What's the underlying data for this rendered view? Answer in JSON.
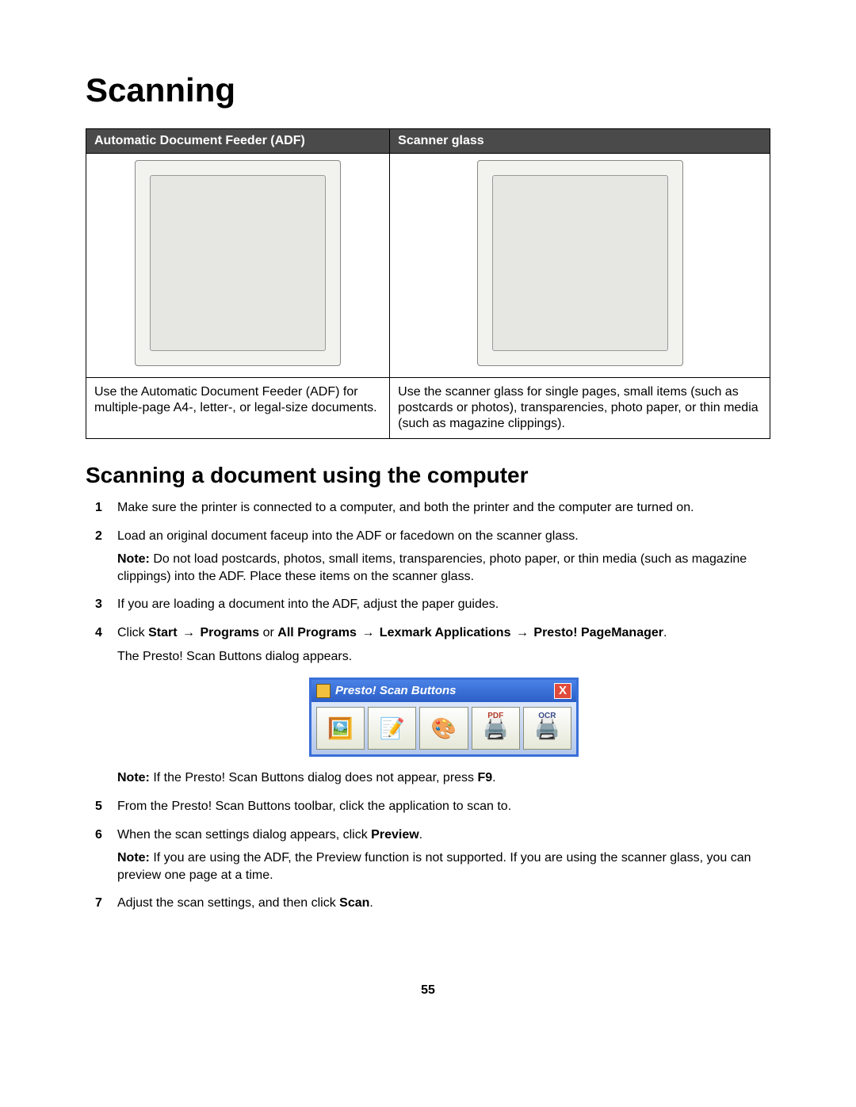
{
  "title": "Scanning",
  "table": {
    "headers": [
      "Automatic Document Feeder (ADF)",
      "Scanner glass"
    ],
    "captions": [
      "Use the Automatic Document Feeder (ADF) for multiple-page A4-, letter-, or legal-size documents.",
      "Use the scanner glass for single pages, small items (such as postcards or photos), transparencies, photo paper, or thin media (such as magazine clippings)."
    ]
  },
  "section_title": "Scanning a document using the computer",
  "steps": {
    "s1": "Make sure the printer is connected to a computer, and both the printer and the computer are turned on.",
    "s2": "Load an original document faceup into the ADF or facedown on the scanner glass.",
    "s2_note_label": "Note:",
    "s2_note": " Do not load postcards, photos, small items, transparencies, photo paper, or thin media (such as magazine clippings) into the ADF. Place these items on the scanner glass.",
    "s3": "If you are loading a document into the ADF, adjust the paper guides.",
    "s4_prefix": "Click ",
    "s4_start": "Start",
    "s4_programs": "Programs",
    "s4_or": " or ",
    "s4_allprograms": "All Programs",
    "s4_lexmark": "Lexmark Applications",
    "s4_presto": "Presto! PageManager",
    "s4_period": ".",
    "s4_sub": "The Presto! Scan Buttons dialog appears.",
    "s4_note_label": "Note:",
    "s4_note_a": " If the Presto! Scan Buttons dialog does not appear, press ",
    "s4_note_key": "F9",
    "s4_note_b": ".",
    "s5": "From the Presto! Scan Buttons toolbar, click the application to scan to.",
    "s6_a": "When the scan settings dialog appears, click ",
    "s6_b": "Preview",
    "s6_c": ".",
    "s6_note_label": "Note:",
    "s6_note": " If you are using the ADF, the Preview function is not supported. If you are using the scanner glass, you can preview one page at a time.",
    "s7_a": "Adjust the scan settings, and then click ",
    "s7_b": "Scan",
    "s7_c": "."
  },
  "dialog": {
    "title": "Presto! Scan Buttons",
    "close": "X",
    "btn_pdf": "PDF",
    "btn_ocr": "OCR"
  },
  "page_number": "55"
}
